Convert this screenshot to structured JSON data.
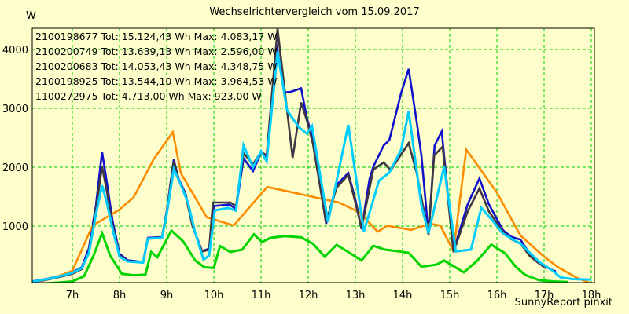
{
  "page": {
    "background": "#FFFFCC"
  },
  "header": {
    "title": "Wechselrichtervergleich vom 15.09.2017"
  },
  "footer": {
    "credit": "SunnyReport pinxit"
  },
  "chart_data": {
    "type": "line",
    "title": "Wechselrichtervergleich vom 15.09.2017",
    "xlabel": "",
    "ylabel": "W",
    "unit_label": "W",
    "grid": true,
    "grid_color": "#00CC00",
    "background_color": "#FFFFCC",
    "legend_position": "top-left",
    "xlim": [
      6.15,
      18.0667
    ],
    "ylim": [
      0,
      4360
    ],
    "x_ticks": [
      {
        "hour": 7,
        "label": "7h"
      },
      {
        "hour": 8,
        "label": "8h"
      },
      {
        "hour": 9,
        "label": "9h"
      },
      {
        "hour": 10,
        "label": "10h"
      },
      {
        "hour": 11,
        "label": "11h"
      },
      {
        "hour": 12,
        "label": "12h"
      },
      {
        "hour": 13,
        "label": "13h"
      },
      {
        "hour": 14,
        "label": "14h"
      },
      {
        "hour": 15,
        "label": "15h"
      },
      {
        "hour": 16,
        "label": "16h"
      },
      {
        "hour": 17,
        "label": "17h"
      },
      {
        "hour": 18,
        "label": "18h"
      }
    ],
    "y_ticks": [
      {
        "value": 1000,
        "label": "1000"
      },
      {
        "value": 2000,
        "label": "2000"
      },
      {
        "value": 3000,
        "label": "3000"
      },
      {
        "value": 4000,
        "label": "4000"
      }
    ],
    "series": [
      {
        "id": "2100198677",
        "label": "2100198677 Tot: 15.124,43 Wh Max: 4.083,17 W",
        "total_wh": "15.124,43 Wh",
        "max_w": "4.083,17 W",
        "color": "#1111CC",
        "width": 2.6,
        "points": [
          [
            6.15,
            60
          ],
          [
            6.5,
            110
          ],
          [
            6.8,
            170
          ],
          [
            7.0,
            215
          ],
          [
            7.2,
            300
          ],
          [
            7.35,
            620
          ],
          [
            7.5,
            1350
          ],
          [
            7.63,
            2260
          ],
          [
            7.73,
            1750
          ],
          [
            7.85,
            1100
          ],
          [
            8.0,
            530
          ],
          [
            8.17,
            420
          ],
          [
            8.5,
            390
          ],
          [
            8.6,
            800
          ],
          [
            8.9,
            815
          ],
          [
            9.0,
            1250
          ],
          [
            9.15,
            2130
          ],
          [
            9.25,
            1810
          ],
          [
            9.4,
            1550
          ],
          [
            9.55,
            1000
          ],
          [
            9.75,
            575
          ],
          [
            9.9,
            615
          ],
          [
            10.0,
            1340
          ],
          [
            10.33,
            1365
          ],
          [
            10.47,
            1290
          ],
          [
            10.63,
            2150
          ],
          [
            10.83,
            1935
          ],
          [
            11.0,
            2250
          ],
          [
            11.12,
            2150
          ],
          [
            11.33,
            4083
          ],
          [
            11.5,
            3270
          ],
          [
            11.63,
            3280
          ],
          [
            11.85,
            3340
          ],
          [
            11.97,
            2840
          ],
          [
            12.1,
            2470
          ],
          [
            12.38,
            1040
          ],
          [
            12.6,
            1700
          ],
          [
            12.85,
            1900
          ],
          [
            13.0,
            1450
          ],
          [
            13.13,
            950
          ],
          [
            13.3,
            1800
          ],
          [
            13.38,
            2010
          ],
          [
            13.6,
            2370
          ],
          [
            13.72,
            2460
          ],
          [
            13.97,
            3260
          ],
          [
            14.13,
            3670
          ],
          [
            14.3,
            2770
          ],
          [
            14.4,
            2200
          ],
          [
            14.55,
            870
          ],
          [
            14.68,
            2370
          ],
          [
            14.83,
            2610
          ],
          [
            15.08,
            580
          ],
          [
            15.38,
            1370
          ],
          [
            15.63,
            1810
          ],
          [
            15.83,
            1370
          ],
          [
            16.13,
            930
          ],
          [
            16.3,
            820
          ],
          [
            16.5,
            770
          ],
          [
            16.7,
            520
          ],
          [
            16.9,
            380
          ],
          [
            17.1,
            280
          ],
          [
            17.25,
            230
          ]
        ]
      },
      {
        "id": "2100200749",
        "label": "2100200749 Tot: 13.639,13 Wh Max: 2.596,00 W",
        "total_wh": "13.639,13 Wh",
        "max_w": "2.596,00 W",
        "color": "#FF8C00",
        "width": 2.6,
        "points": [
          [
            6.33,
            60
          ],
          [
            6.7,
            150
          ],
          [
            7.0,
            240
          ],
          [
            7.43,
            1010
          ],
          [
            8.0,
            1280
          ],
          [
            8.3,
            1490
          ],
          [
            8.72,
            2130
          ],
          [
            9.13,
            2596
          ],
          [
            9.3,
            1900
          ],
          [
            9.85,
            1150
          ],
          [
            10.42,
            1010
          ],
          [
            11.13,
            1665
          ],
          [
            11.8,
            1550
          ],
          [
            12.65,
            1400
          ],
          [
            13.1,
            1230
          ],
          [
            13.47,
            905
          ],
          [
            13.68,
            1005
          ],
          [
            14.18,
            935
          ],
          [
            14.58,
            1040
          ],
          [
            14.8,
            1010
          ],
          [
            15.08,
            575
          ],
          [
            15.35,
            2300
          ],
          [
            16.0,
            1570
          ],
          [
            16.5,
            840
          ],
          [
            17.0,
            480
          ],
          [
            17.3,
            300
          ],
          [
            17.7,
            120
          ],
          [
            17.95,
            40
          ]
        ]
      },
      {
        "id": "2100200683",
        "label": "2100200683 Tot: 14.053,43 Wh Max: 4.348,75 W",
        "total_wh": "14.053,43 Wh",
        "max_w": "4.348,75 W",
        "color": "#3F3744",
        "width": 2.6,
        "points": [
          [
            6.15,
            50
          ],
          [
            6.5,
            95
          ],
          [
            6.8,
            150
          ],
          [
            7.0,
            190
          ],
          [
            7.2,
            270
          ],
          [
            7.35,
            560
          ],
          [
            7.5,
            1280
          ],
          [
            7.63,
            2010
          ],
          [
            7.73,
            1600
          ],
          [
            7.85,
            1020
          ],
          [
            8.0,
            500
          ],
          [
            8.17,
            405
          ],
          [
            8.5,
            380
          ],
          [
            8.6,
            790
          ],
          [
            8.9,
            805
          ],
          [
            9.0,
            1230
          ],
          [
            9.15,
            2100
          ],
          [
            9.25,
            1790
          ],
          [
            9.4,
            1530
          ],
          [
            9.55,
            990
          ],
          [
            9.75,
            565
          ],
          [
            9.9,
            600
          ],
          [
            9.98,
            1400
          ],
          [
            10.35,
            1400
          ],
          [
            10.47,
            1340
          ],
          [
            10.63,
            2240
          ],
          [
            10.83,
            2050
          ],
          [
            11.0,
            2260
          ],
          [
            11.12,
            2200
          ],
          [
            11.35,
            4349
          ],
          [
            11.67,
            2160
          ],
          [
            11.85,
            3100
          ],
          [
            11.97,
            2800
          ],
          [
            12.1,
            2400
          ],
          [
            12.38,
            1060
          ],
          [
            12.6,
            1650
          ],
          [
            12.85,
            1870
          ],
          [
            13.0,
            1400
          ],
          [
            13.13,
            960
          ],
          [
            13.38,
            1960
          ],
          [
            13.6,
            2080
          ],
          [
            13.75,
            1950
          ],
          [
            14.13,
            2410
          ],
          [
            14.3,
            1900
          ],
          [
            14.55,
            850
          ],
          [
            14.67,
            2200
          ],
          [
            14.85,
            2350
          ],
          [
            15.08,
            560
          ],
          [
            15.38,
            1250
          ],
          [
            15.63,
            1640
          ],
          [
            15.83,
            1250
          ],
          [
            16.13,
            900
          ],
          [
            16.3,
            780
          ],
          [
            16.5,
            700
          ],
          [
            16.7,
            490
          ],
          [
            16.9,
            360
          ],
          [
            17.05,
            280
          ]
        ]
      },
      {
        "id": "2100198925",
        "label": "2100198925 Tot: 13.544,10 Wh Max: 3.964,53 W",
        "total_wh": "13.544,10 Wh",
        "max_w": "3.964,53 W",
        "color": "#00CCFF",
        "width": 3,
        "points": [
          [
            6.15,
            55
          ],
          [
            6.5,
            105
          ],
          [
            6.8,
            160
          ],
          [
            7.0,
            205
          ],
          [
            7.2,
            285
          ],
          [
            7.35,
            540
          ],
          [
            7.5,
            1200
          ],
          [
            7.63,
            1690
          ],
          [
            7.73,
            1400
          ],
          [
            7.85,
            960
          ],
          [
            8.0,
            480
          ],
          [
            8.17,
            400
          ],
          [
            8.5,
            380
          ],
          [
            8.6,
            785
          ],
          [
            8.9,
            800
          ],
          [
            9.0,
            1200
          ],
          [
            9.15,
            1970
          ],
          [
            9.3,
            1700
          ],
          [
            9.45,
            1400
          ],
          [
            9.6,
            900
          ],
          [
            9.78,
            430
          ],
          [
            9.9,
            500
          ],
          [
            10.02,
            1265
          ],
          [
            10.3,
            1310
          ],
          [
            10.47,
            1260
          ],
          [
            10.63,
            2370
          ],
          [
            10.83,
            2000
          ],
          [
            11.0,
            2270
          ],
          [
            11.12,
            2100
          ],
          [
            11.35,
            3965
          ],
          [
            11.55,
            2970
          ],
          [
            11.8,
            2680
          ],
          [
            11.97,
            2570
          ],
          [
            12.08,
            2700
          ],
          [
            12.42,
            1070
          ],
          [
            12.85,
            2720
          ],
          [
            13.18,
            910
          ],
          [
            13.5,
            1770
          ],
          [
            13.72,
            1910
          ],
          [
            13.97,
            2300
          ],
          [
            14.13,
            2950
          ],
          [
            14.4,
            1350
          ],
          [
            14.55,
            880
          ],
          [
            14.88,
            2010
          ],
          [
            15.13,
            570
          ],
          [
            15.45,
            600
          ],
          [
            15.67,
            1310
          ],
          [
            15.9,
            1100
          ],
          [
            16.13,
            870
          ],
          [
            16.5,
            700
          ],
          [
            16.9,
            390
          ],
          [
            17.17,
            250
          ],
          [
            17.35,
            130
          ],
          [
            17.6,
            100
          ],
          [
            18.0,
            90
          ]
        ]
      },
      {
        "id": "1100272975",
        "label": "1100272975 Tot: 4.713,00 Wh Max: 923,00 W",
        "total_wh": "4.713,00 Wh",
        "max_w": "923,00 W",
        "color": "#00D400",
        "width": 3,
        "points": [
          [
            6.3,
            20
          ],
          [
            6.7,
            40
          ],
          [
            7.0,
            60
          ],
          [
            7.25,
            150
          ],
          [
            7.45,
            500
          ],
          [
            7.63,
            880
          ],
          [
            7.8,
            500
          ],
          [
            8.05,
            190
          ],
          [
            8.3,
            165
          ],
          [
            8.55,
            175
          ],
          [
            8.67,
            560
          ],
          [
            8.8,
            470
          ],
          [
            9.1,
            923
          ],
          [
            9.35,
            740
          ],
          [
            9.6,
            420
          ],
          [
            9.8,
            300
          ],
          [
            10.0,
            290
          ],
          [
            10.13,
            660
          ],
          [
            10.35,
            560
          ],
          [
            10.6,
            600
          ],
          [
            10.85,
            860
          ],
          [
            11.02,
            730
          ],
          [
            11.2,
            800
          ],
          [
            11.5,
            830
          ],
          [
            11.85,
            810
          ],
          [
            12.1,
            700
          ],
          [
            12.35,
            480
          ],
          [
            12.6,
            680
          ],
          [
            12.85,
            560
          ],
          [
            13.13,
            415
          ],
          [
            13.38,
            665
          ],
          [
            13.63,
            600
          ],
          [
            13.88,
            575
          ],
          [
            14.13,
            545
          ],
          [
            14.4,
            310
          ],
          [
            14.72,
            345
          ],
          [
            14.88,
            415
          ],
          [
            15.3,
            215
          ],
          [
            15.58,
            410
          ],
          [
            15.88,
            685
          ],
          [
            16.17,
            540
          ],
          [
            16.4,
            310
          ],
          [
            16.6,
            170
          ],
          [
            16.9,
            80
          ],
          [
            17.2,
            60
          ],
          [
            17.5,
            50
          ]
        ]
      }
    ]
  }
}
